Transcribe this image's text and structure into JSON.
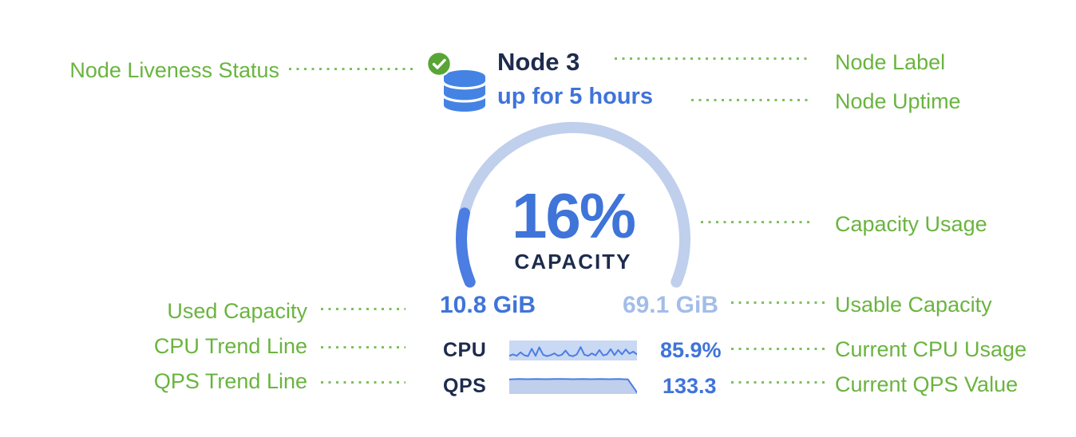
{
  "palette": {
    "annotation_green": "#6ab43f",
    "navy": "#1d2b4d",
    "blue": "#3f74d9",
    "light_blue": "#a3bde9",
    "gauge_track": "#bfcfec",
    "gauge_fill": "#4b7de2",
    "liveness_green": "#58a535",
    "database_blue": "#4483e4"
  },
  "card": {
    "node_label": "Node 3",
    "uptime": "up for 5 hours",
    "capacity_percent": "16%",
    "capacity_word": "CAPACITY",
    "used_capacity": "10.8 GiB",
    "usable_capacity": "69.1 GiB",
    "cpu_label": "CPU",
    "cpu_value": "85.9%",
    "qps_label": "QPS",
    "qps_value": "133.3",
    "liveness_icon": "green-check-badge",
    "node_icon": "database-cylinder"
  },
  "annotations": {
    "node_liveness": "Node Liveness Status",
    "node_label": "Node Label",
    "node_uptime": "Node Uptime",
    "capacity_usage": "Capacity Usage",
    "used_capacity": "Used Capacity",
    "usable_capacity": "Usable Capacity",
    "cpu_trend": "CPU Trend Line",
    "current_cpu": "Current CPU Usage",
    "qps_trend": "QPS Trend Line",
    "current_qps": "Current QPS Value"
  },
  "chart_data": [
    {
      "type": "gauge",
      "title": "CAPACITY",
      "value_percent": 16,
      "arc_degrees": 225,
      "start_angle_deg": 202.5,
      "min_label": "10.8 GiB",
      "max_label": "69.1 GiB",
      "fill_color": "#4b7de2",
      "track_color": "#bfcfec"
    },
    {
      "type": "line",
      "name": "CPU trend sparkline",
      "current_value": "85.9%",
      "ylim": [
        0,
        1
      ],
      "values": [
        0.22,
        0.3,
        0.22,
        0.42,
        0.25,
        0.2,
        0.62,
        0.22,
        0.7,
        0.28,
        0.2,
        0.26,
        0.36,
        0.22,
        0.28,
        0.52,
        0.24,
        0.2,
        0.3,
        0.72,
        0.28,
        0.22,
        0.36,
        0.24,
        0.55,
        0.24,
        0.3,
        0.6,
        0.26,
        0.55,
        0.3,
        0.58,
        0.34,
        0.46,
        0.3
      ]
    },
    {
      "type": "area",
      "name": "QPS trend sparkline",
      "current_value": 133.3,
      "ylim": [
        0,
        1
      ],
      "values": [
        0.86,
        0.88,
        0.87,
        0.88,
        0.87,
        0.88,
        0.88,
        0.87,
        0.88,
        0.87,
        0.88,
        0.87,
        0.88,
        0.86,
        0.05
      ]
    }
  ]
}
